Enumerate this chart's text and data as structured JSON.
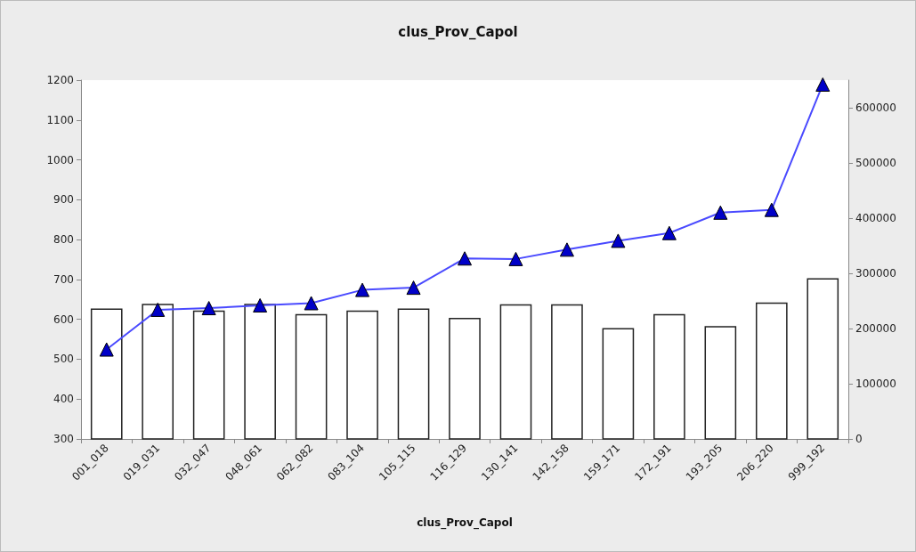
{
  "chart_data": {
    "type": "bar",
    "title": "clus_Prov_Capol",
    "xlabel": "clus_Prov_Capol",
    "categories": [
      "001_018",
      "019_031",
      "032_047",
      "048_061",
      "062_082",
      "083_104",
      "105_115",
      "116_129",
      "130_141",
      "142_158",
      "159_171",
      "172_191",
      "193_205",
      "206_220",
      "999_192"
    ],
    "series": [
      {
        "color": "#ffffff",
        "values": [
          627,
          639,
          622,
          639,
          613,
          622,
          627,
          604,
          638,
          638,
          578,
          613,
          583,
          642,
          703
        ]
      },
      {
        "type": "line",
        "axis": "y2",
        "color": "#4a4aff",
        "marker": "triangle",
        "values": [
          162000,
          234000,
          237000,
          242000,
          246000,
          270000,
          274000,
          327000,
          326000,
          343000,
          359000,
          373000,
          410000,
          415000,
          642000
        ]
      }
    ],
    "ylim": [
      300,
      1200
    ],
    "yticks": [
      300,
      400,
      500,
      600,
      700,
      800,
      900,
      1000,
      1100,
      1200
    ],
    "y2lim": [
      0,
      650000
    ],
    "y2ticks": [
      0,
      100000,
      200000,
      300000,
      400000,
      500000,
      600000
    ],
    "grid": false
  }
}
